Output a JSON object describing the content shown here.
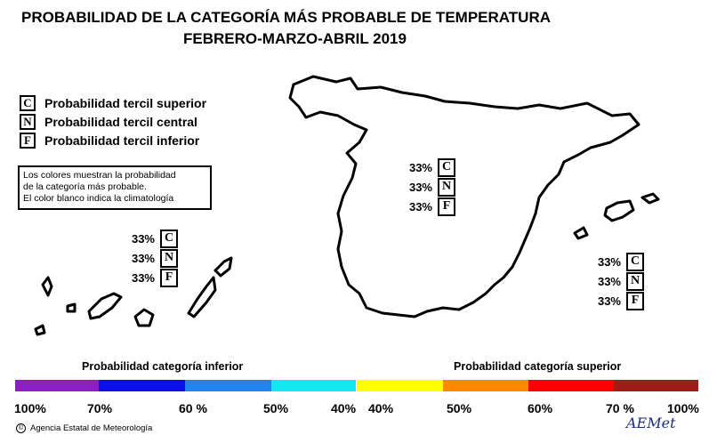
{
  "title": {
    "line1": "PROBABILIDAD DE LA CATEGORÍA MÁS PROBABLE DE  TEMPERATURA",
    "line2": "FEBRERO-MARZO-ABRIL 2019"
  },
  "legend": [
    {
      "letter": "C",
      "label": "Probabilidad  tercil superior"
    },
    {
      "letter": "N",
      "label": "Probabilidad  tercil central"
    },
    {
      "letter": "F",
      "label": "Probabilidad  tercil inferior"
    }
  ],
  "note": [
    "Los colores muestran la probabilidad",
    "de la categoría más probable.",
    "El color blanco indica la climatología"
  ],
  "regions": {
    "peninsula": [
      {
        "pct": "33%",
        "letter": "C"
      },
      {
        "pct": "33%",
        "letter": "N"
      },
      {
        "pct": "33%",
        "letter": "F"
      }
    ],
    "canarias": [
      {
        "pct": "33%",
        "letter": "C"
      },
      {
        "pct": "33%",
        "letter": "N"
      },
      {
        "pct": "33%",
        "letter": "F"
      }
    ],
    "baleares": [
      {
        "pct": "33%",
        "letter": "C"
      },
      {
        "pct": "33%",
        "letter": "N"
      },
      {
        "pct": "33%",
        "letter": "F"
      }
    ]
  },
  "scale": {
    "inferior_title": "Probabilidad categoría inferior",
    "superior_title": "Probabilidad categoría superior",
    "inferior_colors": [
      "#8b1fc4",
      "#0a10e6",
      "#1f86f0",
      "#13e6f0"
    ],
    "superior_colors": [
      "#ffff00",
      "#ff8800",
      "#ff0000",
      "#9e1d16"
    ],
    "ticks": [
      "100%",
      "70%",
      "60 %",
      "50%",
      "40%",
      "40%",
      "50%",
      "60%",
      "70 %",
      "100%"
    ]
  },
  "footer": {
    "copyright_symbol": "©",
    "agency": "Agencia Estatal de Meteorología"
  },
  "logo": {
    "text": "AEMet"
  }
}
